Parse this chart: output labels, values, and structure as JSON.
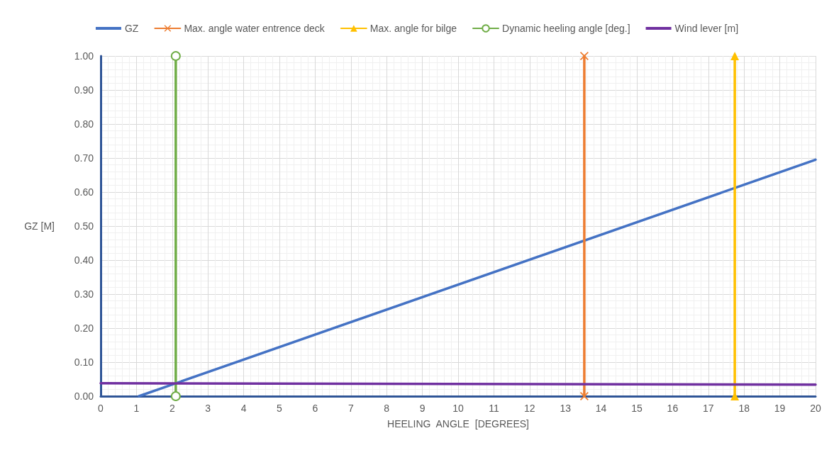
{
  "chart_data": {
    "type": "line",
    "xlabel": "HEELING  ANGLE  [DEGREES]",
    "ylabel": "GZ [M]",
    "xlim": [
      0,
      20
    ],
    "ylim": [
      0,
      1
    ],
    "xticks": [
      0,
      1,
      2,
      3,
      4,
      5,
      6,
      7,
      8,
      9,
      10,
      11,
      12,
      13,
      14,
      15,
      16,
      17,
      18,
      19,
      20
    ],
    "yticks": [
      {
        "value": 0,
        "label": "0.00"
      },
      {
        "value": 0.1,
        "label": "0.10"
      },
      {
        "value": 0.2,
        "label": "0.20"
      },
      {
        "value": 0.3,
        "label": "0.30"
      },
      {
        "value": 0.4,
        "label": "0.40"
      },
      {
        "value": 0.5,
        "label": "0.50"
      },
      {
        "value": 0.6,
        "label": "0.60"
      },
      {
        "value": 0.7,
        "label": "0.70"
      },
      {
        "value": 0.8,
        "label": "0.80"
      },
      {
        "value": 0.9,
        "label": "0.90"
      },
      {
        "value": 1,
        "label": "1.00"
      }
    ],
    "grid": true,
    "legend": "top",
    "line_style": "solid",
    "series": [
      {
        "name": "GZ",
        "color": "#4472c4",
        "marker": "none",
        "x": [
          1.07,
          20
        ],
        "values": [
          0,
          0.695
        ]
      },
      {
        "name": "Max. angle water entrence deck",
        "color": "#ed7d31",
        "marker": "cross",
        "x": [
          13.53,
          13.53
        ],
        "values": [
          0,
          1
        ]
      },
      {
        "name": "Max. angle for bilge",
        "color": "#ffc000",
        "marker": "triangle",
        "x": [
          17.74,
          17.74
        ],
        "values": [
          0,
          1
        ]
      },
      {
        "name": "Dynamic heeling angle [deg.]",
        "color": "#70ad47",
        "marker": "circle",
        "x": [
          2.1,
          2.1
        ],
        "values": [
          0,
          1
        ]
      },
      {
        "name": "Wind lever [m]",
        "color": "#7030a0",
        "marker": "none",
        "x": [
          0,
          20
        ],
        "values": [
          0.038,
          0.034
        ]
      }
    ]
  }
}
